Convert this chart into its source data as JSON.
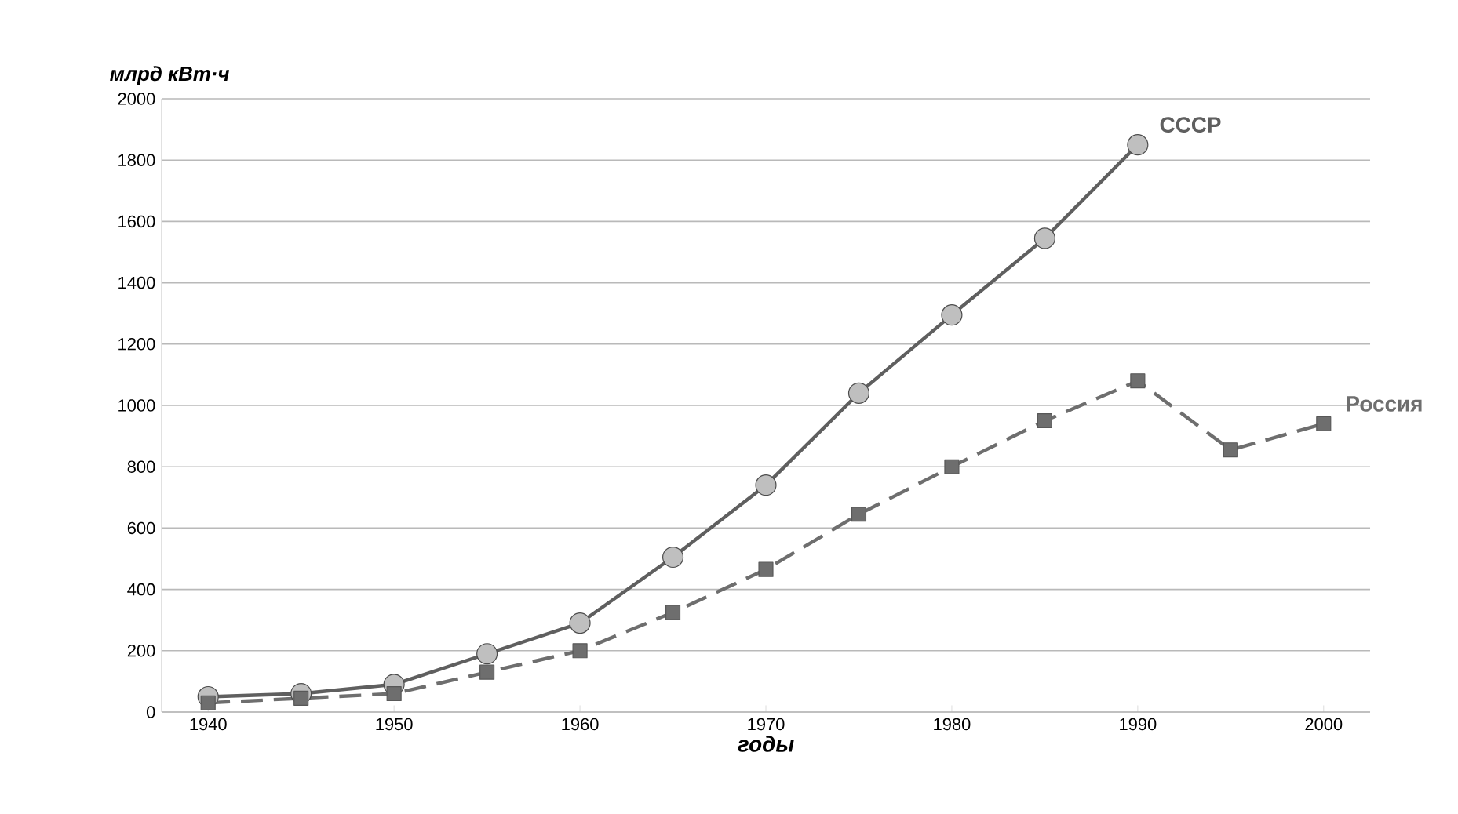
{
  "chart_data": {
    "type": "line",
    "ylabel": "млрд кВт·ч",
    "xlabel": "годы",
    "x": [
      1940,
      1945,
      1950,
      1955,
      1960,
      1965,
      1970,
      1975,
      1980,
      1985,
      1990,
      1995,
      2000
    ],
    "series": [
      {
        "name": "СССР",
        "color": "#5f5f5f",
        "marker": "circle",
        "line_style": "solid",
        "values": [
          50,
          60,
          90,
          190,
          290,
          505,
          740,
          1040,
          1295,
          1545,
          1850,
          null,
          null
        ]
      },
      {
        "name": "Россия",
        "color": "#6e6e6e",
        "marker": "square",
        "line_style": "dashed",
        "values": [
          30,
          45,
          60,
          130,
          200,
          325,
          465,
          645,
          800,
          950,
          1080,
          855,
          940
        ]
      }
    ],
    "xlim": [
      1937.5,
      2002.5
    ],
    "xticks": [
      1940,
      1950,
      1960,
      1970,
      1980,
      1990,
      2000
    ],
    "ylim": [
      0,
      2000
    ],
    "yticks": [
      0,
      200,
      400,
      600,
      800,
      1000,
      1200,
      1400,
      1600,
      1800,
      2000
    ],
    "grid": "y",
    "legend": false
  }
}
